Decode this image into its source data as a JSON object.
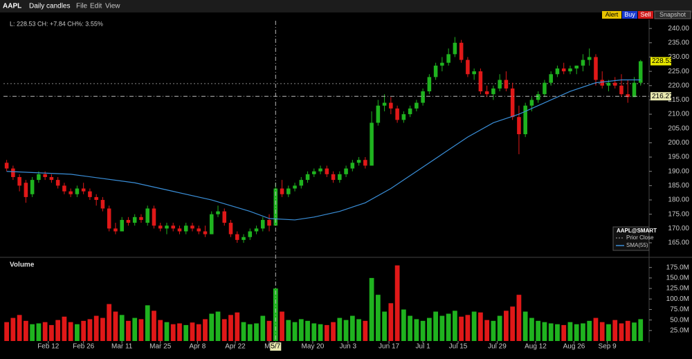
{
  "chart_data": {
    "type": "candlestick",
    "toolbar": {
      "symbol": "AAPL",
      "interval": "Daily candles",
      "menus": [
        "File",
        "Edit",
        "View"
      ],
      "buttons": [
        "Alert",
        "Buy",
        "Sell",
        "Snapshot"
      ]
    },
    "info": "L: 228.53 CH: +7.84 CH%: 3.55%",
    "legend": {
      "title": "AAPL@SMART",
      "items": [
        "Prior Close"
      ]
    },
    "crosshair": {
      "price": 216.27,
      "date_label": "5/7",
      "x": 42
    },
    "prior_close": 220.69,
    "xlim": [
      -0.5,
      100
    ],
    "xticks": [
      {
        "value": 6.5,
        "label": "Feb 12"
      },
      {
        "value": 12,
        "label": "Feb 26"
      },
      {
        "value": 18,
        "label": "Mar 11"
      },
      {
        "value": 24,
        "label": "Mar 25"
      },
      {
        "value": 29.8,
        "label": "Apr 8"
      },
      {
        "value": 35.7,
        "label": "Apr 22"
      },
      {
        "value": 41,
        "label": "Ma"
      },
      {
        "value": 47.8,
        "label": "May 20"
      },
      {
        "value": 53.3,
        "label": "Jun 3"
      },
      {
        "value": 59.7,
        "label": "Jun 17"
      },
      {
        "value": 65,
        "label": "Jul 1"
      },
      {
        "value": 70.5,
        "label": "Jul 15"
      },
      {
        "value": 76.6,
        "label": "Jul 29"
      },
      {
        "value": 82.6,
        "label": "Aug 12"
      },
      {
        "value": 88.6,
        "label": "Aug 26"
      },
      {
        "value": 93.8,
        "label": "Sep 9"
      }
    ],
    "ylim": [
      160.4,
      242.7
    ],
    "yticks": [
      {
        "value": 165,
        "label": "165.00"
      },
      {
        "value": 170,
        "label": "170.00"
      },
      {
        "value": 175,
        "label": "175.00"
      },
      {
        "value": 180,
        "label": "180.00"
      },
      {
        "value": 185,
        "label": "185.00"
      },
      {
        "value": 190,
        "label": "190.00"
      },
      {
        "value": 195,
        "label": "195.00"
      },
      {
        "value": 200,
        "label": "200.00"
      },
      {
        "value": 205,
        "label": "205.00"
      },
      {
        "value": 210,
        "label": "210.00"
      },
      {
        "value": 215,
        "label": "215.00"
      },
      {
        "value": 220,
        "label": "220.00"
      },
      {
        "value": 225,
        "label": "225.00"
      },
      {
        "value": 230,
        "label": "230.00"
      },
      {
        "value": 235,
        "label": "235.00"
      },
      {
        "value": 240,
        "label": "240.00"
      }
    ],
    "series": [
      {
        "name": "AAPL",
        "up_color": "#1fb31f",
        "down_color": "#e01818",
        "values": [
          [
            193,
            194,
            190,
            191
          ],
          [
            191,
            192,
            187,
            188
          ],
          [
            188,
            189,
            183,
            185
          ],
          [
            186,
            187,
            179,
            181
          ],
          [
            182,
            188,
            181,
            187
          ],
          [
            187,
            190,
            186,
            189
          ],
          [
            189,
            190,
            187,
            188
          ],
          [
            188,
            189,
            186,
            187
          ],
          [
            187,
            188,
            184,
            185
          ],
          [
            185,
            186,
            182,
            183
          ],
          [
            183,
            184,
            181,
            182
          ],
          [
            182,
            185,
            181,
            184
          ],
          [
            184,
            186,
            182,
            183
          ],
          [
            183,
            184,
            180,
            181
          ],
          [
            181,
            182,
            178,
            180
          ],
          [
            180,
            181,
            176,
            177
          ],
          [
            177,
            178,
            169,
            170
          ],
          [
            170,
            172,
            168,
            169
          ],
          [
            169,
            174,
            169,
            173
          ],
          [
            173,
            174,
            171,
            172
          ],
          [
            172,
            175,
            171,
            174
          ],
          [
            174,
            175,
            172,
            173
          ],
          [
            172,
            178,
            171,
            177
          ],
          [
            177,
            178,
            170,
            171
          ],
          [
            171,
            172,
            169,
            170
          ],
          [
            170,
            172,
            168,
            171
          ],
          [
            171,
            172,
            169,
            170
          ],
          [
            170,
            171,
            168,
            169
          ],
          [
            169,
            172,
            168,
            171
          ],
          [
            171,
            172,
            169,
            170
          ],
          [
            170,
            171,
            168,
            169
          ],
          [
            169,
            171,
            167,
            168
          ],
          [
            168,
            176,
            168,
            175
          ],
          [
            175,
            178,
            174,
            176
          ],
          [
            176,
            177,
            171,
            172
          ],
          [
            172,
            173,
            167,
            168
          ],
          [
            168,
            169,
            165,
            166
          ],
          [
            166,
            168,
            165,
            167
          ],
          [
            167,
            170,
            166,
            169
          ],
          [
            169,
            171,
            168,
            170
          ],
          [
            170,
            174,
            169,
            173
          ],
          [
            173,
            175,
            169,
            171
          ],
          [
            171,
            186,
            171,
            184
          ],
          [
            184,
            187,
            181,
            182
          ],
          [
            182,
            185,
            181,
            184
          ],
          [
            184,
            186,
            183,
            185
          ],
          [
            185,
            188,
            184,
            187
          ],
          [
            187,
            190,
            186,
            189
          ],
          [
            189,
            191,
            188,
            190
          ],
          [
            190,
            192,
            189,
            191
          ],
          [
            191,
            192,
            188,
            189
          ],
          [
            189,
            190,
            186,
            187
          ],
          [
            187,
            190,
            186,
            189
          ],
          [
            189,
            192,
            188,
            191
          ],
          [
            191,
            194,
            190,
            193
          ],
          [
            193,
            195,
            192,
            194
          ],
          [
            194,
            195,
            191,
            192
          ],
          [
            192,
            211,
            192,
            207
          ],
          [
            207,
            215,
            206,
            213
          ],
          [
            213,
            217,
            211,
            214
          ],
          [
            214,
            216,
            210,
            212
          ],
          [
            212,
            213,
            207,
            208
          ],
          [
            208,
            211,
            207,
            210
          ],
          [
            210,
            213,
            209,
            212
          ],
          [
            212,
            215,
            211,
            214
          ],
          [
            214,
            219,
            213,
            218
          ],
          [
            218,
            224,
            217,
            223
          ],
          [
            223,
            228,
            222,
            227
          ],
          [
            227,
            230,
            225,
            228
          ],
          [
            228,
            233,
            227,
            231
          ],
          [
            231,
            237,
            230,
            235
          ],
          [
            235,
            236,
            228,
            229
          ],
          [
            229,
            230,
            223,
            224
          ],
          [
            224,
            226,
            222,
            225
          ],
          [
            225,
            226,
            217,
            218
          ],
          [
            218,
            220,
            216,
            217
          ],
          [
            217,
            220,
            215,
            219
          ],
          [
            219,
            224,
            218,
            222
          ],
          [
            222,
            225,
            218,
            219
          ],
          [
            219,
            221,
            208,
            209
          ],
          [
            209,
            213,
            196,
            203
          ],
          [
            203,
            214,
            202,
            213
          ],
          [
            213,
            216,
            211,
            215
          ],
          [
            215,
            218,
            214,
            217
          ],
          [
            217,
            222,
            216,
            221
          ],
          [
            221,
            225,
            220,
            224
          ],
          [
            224,
            227,
            223,
            226
          ],
          [
            226,
            228,
            224,
            225
          ],
          [
            225,
            227,
            224,
            226
          ],
          [
            226,
            227,
            224,
            227
          ],
          [
            227,
            231,
            225,
            229
          ],
          [
            229,
            233,
            227,
            230
          ],
          [
            230,
            231,
            220,
            222
          ],
          [
            222,
            225,
            219,
            220
          ],
          [
            220,
            222,
            218,
            221
          ],
          [
            221,
            223,
            219,
            220
          ],
          [
            220,
            224,
            216,
            217
          ],
          [
            217,
            222,
            214,
            216
          ],
          [
            216,
            223,
            216,
            221
          ],
          [
            221,
            229,
            220,
            228.53
          ]
        ]
      },
      {
        "name": "SMA(55)",
        "color": "#3a8fd9",
        "x": [
          0,
          10,
          20,
          26,
          32,
          38,
          41,
          45,
          48,
          52,
          56,
          60,
          64,
          68,
          72,
          76,
          80,
          84,
          88,
          92,
          96,
          99
        ],
        "values": [
          190,
          189,
          186,
          183,
          180,
          176,
          173.5,
          173,
          174,
          176,
          179,
          184,
          190,
          196,
          202,
          207,
          210,
          214,
          218,
          221,
          222,
          222
        ]
      }
    ],
    "volume": {
      "title": "Volume",
      "ylim": [
        0,
        186
      ],
      "yticks": [
        {
          "value": 25,
          "label": "25.0M"
        },
        {
          "value": 50,
          "label": "50.0M"
        },
        {
          "value": 75,
          "label": "75.0M"
        },
        {
          "value": 100,
          "label": "100.0M"
        },
        {
          "value": 125,
          "label": "125.0M"
        },
        {
          "value": 150,
          "label": "150.0M"
        },
        {
          "value": 175,
          "label": "175.0M"
        }
      ],
      "values": [
        45,
        55,
        62,
        48,
        40,
        42,
        45,
        38,
        50,
        58,
        45,
        40,
        48,
        52,
        60,
        55,
        88,
        70,
        62,
        48,
        55,
        52,
        85,
        72,
        50,
        45,
        40,
        42,
        38,
        44,
        40,
        52,
        65,
        70,
        52,
        62,
        68,
        45,
        40,
        42,
        60,
        48,
        125,
        70,
        50,
        45,
        52,
        48,
        42,
        40,
        38,
        45,
        55,
        50,
        60,
        52,
        48,
        150,
        110,
        70,
        90,
        180,
        75,
        60,
        52,
        48,
        55,
        70,
        60,
        65,
        72,
        58,
        62,
        70,
        68,
        50,
        48,
        60,
        72,
        82,
        110,
        70,
        55,
        48,
        45,
        42,
        40,
        38,
        45,
        40,
        42,
        48,
        55,
        45,
        40,
        50,
        42,
        48,
        44,
        52
      ]
    }
  }
}
